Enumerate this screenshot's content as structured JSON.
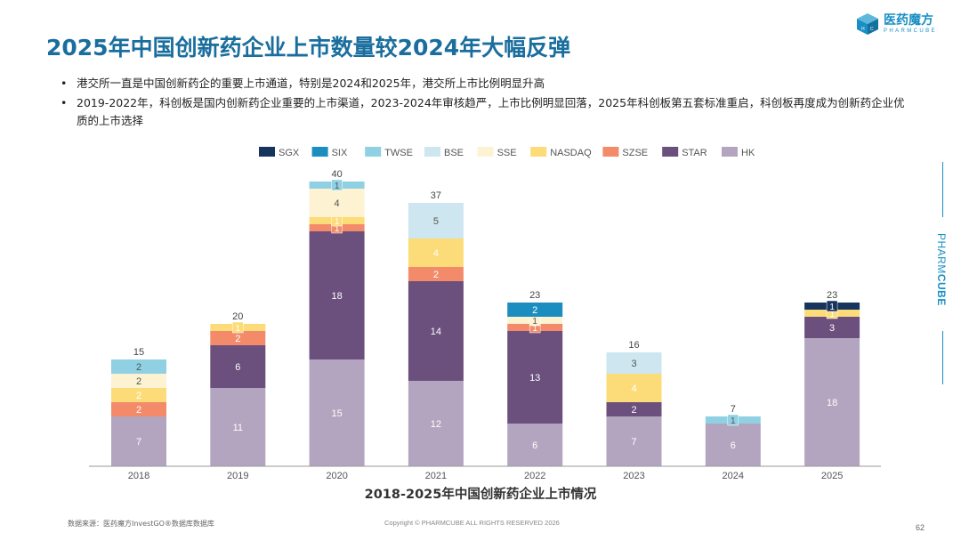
{
  "header": {
    "title": "2025年中国创新药企业上市数量较2024年大幅反弹",
    "logo_cn": "医药魔方",
    "logo_en": "PHARMCUBE"
  },
  "bullets": [
    "港交所一直是中国创新药企的重要上市通道，特别是2024和2025年，港交所上市比例明显升高",
    "2019-2022年，科创板是国内创新药企业重要的上市渠道，2023-2024年审核趋严，上市比例明显回落，2025年科创板第五套标准重启，科创板再度成为创新药企业优质的上市选择"
  ],
  "side_brand": {
    "light": "PHARM",
    "bold": "CUBE"
  },
  "chart_data": {
    "type": "bar",
    "stacked": true,
    "title": "2018-2025年中国创新药企业上市情况",
    "xlabel": "",
    "ylabel": "",
    "legend_position": "top",
    "grid": false,
    "categories": [
      "2018",
      "2019",
      "2020",
      "2021",
      "2022",
      "2023",
      "2024",
      "2025"
    ],
    "totals": [
      15,
      20,
      40,
      37,
      23,
      16,
      7,
      23
    ],
    "ylim": [
      0,
      40
    ],
    "series": [
      {
        "name": "HK",
        "color": "#b3a5bf",
        "label_color": "#ffffff",
        "values": [
          7,
          11,
          15,
          12,
          6,
          7,
          6,
          18
        ]
      },
      {
        "name": "STAR",
        "color": "#6b4f7c",
        "label_color": "#ffffff",
        "values": [
          0,
          6,
          18,
          14,
          13,
          2,
          0,
          3
        ]
      },
      {
        "name": "SZSE",
        "color": "#f38b6b",
        "label_color": "#ffffff",
        "values": [
          2,
          2,
          1,
          2,
          1,
          0,
          0,
          0
        ]
      },
      {
        "name": "NASDAQ",
        "color": "#fcdc78",
        "label_color": "#ffffff",
        "values": [
          2,
          1,
          1,
          4,
          0,
          4,
          0,
          1
        ]
      },
      {
        "name": "SSE",
        "color": "#fdf2d2",
        "label_color": "#555555",
        "values": [
          2,
          0,
          4,
          0,
          1,
          0,
          0,
          0
        ]
      },
      {
        "name": "BSE",
        "color": "#cde6f0",
        "label_color": "#555555",
        "values": [
          0,
          0,
          0,
          5,
          0,
          3,
          0,
          0
        ]
      },
      {
        "name": "TWSE",
        "color": "#8fd0e3",
        "label_color": "#555555",
        "values": [
          2,
          0,
          1,
          0,
          0,
          0,
          1,
          0
        ]
      },
      {
        "name": "SIX",
        "color": "#1b8dbf",
        "label_color": "#ffffff",
        "values": [
          0,
          0,
          0,
          0,
          2,
          0,
          0,
          0
        ]
      },
      {
        "name": "SGX",
        "color": "#17345e",
        "label_color": "#ffffff",
        "values": [
          0,
          0,
          0,
          0,
          0,
          0,
          0,
          1
        ]
      }
    ],
    "legend_order": [
      "SGX",
      "SIX",
      "TWSE",
      "BSE",
      "SSE",
      "NASDAQ",
      "SZSE",
      "STAR",
      "HK"
    ]
  },
  "footer": {
    "source": "数据来源：医药魔方InvestGO®数据库数据库",
    "copyright": "Copyright © PHARMCUBE ALL RIGHTS RESERVED 2026",
    "page": "62"
  }
}
